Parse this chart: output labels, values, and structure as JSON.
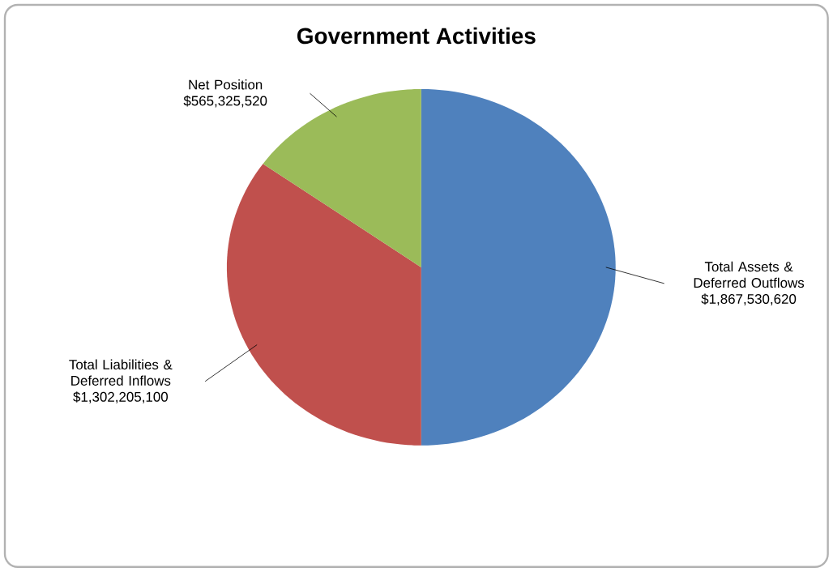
{
  "chart_data": {
    "type": "pie",
    "title": "Government Activities",
    "categories": [
      "Total Assets & Deferred Outflows",
      "Total Liabilities & Deferred Inflows",
      "Net Position"
    ],
    "values": [
      1867530620,
      1302205100,
      565325520
    ],
    "value_labels": [
      "$1,867,530,620",
      "$1,302,205,100",
      "$565,325,520"
    ],
    "colors": [
      "#4f81bd",
      "#c0504d",
      "#9bbb59"
    ],
    "legend": false
  }
}
